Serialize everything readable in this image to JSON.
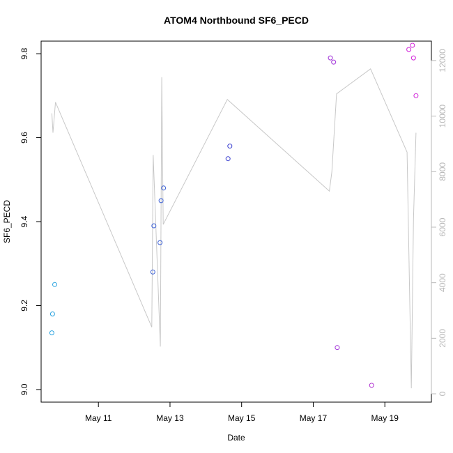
{
  "chart_data": {
    "type": "scatter",
    "title": "ATOM4 Northbound SF6_PECD",
    "xlabel": "Date",
    "ylabel": "SF6_PECD",
    "x_ticks": [
      "May 11",
      "May 13",
      "May 15",
      "May 17",
      "May 19"
    ],
    "x_tick_days": [
      11,
      13,
      15,
      17,
      19
    ],
    "xlim": [
      9.4,
      20.3
    ],
    "ylim": [
      8.97,
      9.83
    ],
    "y_ticks": [
      9.0,
      9.2,
      9.4,
      9.6,
      9.8
    ],
    "y2lim": [
      -300,
      12700
    ],
    "y2_ticks": [
      0,
      2000,
      4000,
      6000,
      8000,
      10000,
      12000
    ],
    "grid": false,
    "points": [
      {
        "x": 9.7,
        "y": 9.135,
        "color": "#29a3e0"
      },
      {
        "x": 9.72,
        "y": 9.18,
        "color": "#29a3e0"
      },
      {
        "x": 9.78,
        "y": 9.25,
        "color": "#29a3e0"
      },
      {
        "x": 12.52,
        "y": 9.28,
        "color": "#3a5fd6"
      },
      {
        "x": 12.55,
        "y": 9.39,
        "color": "#3a5fd6"
      },
      {
        "x": 12.72,
        "y": 9.35,
        "color": "#3a5fd6"
      },
      {
        "x": 12.75,
        "y": 9.45,
        "color": "#3a5fd6"
      },
      {
        "x": 12.82,
        "y": 9.48,
        "color": "#3a5fd6"
      },
      {
        "x": 14.62,
        "y": 9.55,
        "color": "#3a3fd0"
      },
      {
        "x": 14.67,
        "y": 9.58,
        "color": "#3a3fd0"
      },
      {
        "x": 17.48,
        "y": 9.79,
        "color": "#a030d8"
      },
      {
        "x": 17.57,
        "y": 9.78,
        "color": "#a030d8"
      },
      {
        "x": 17.67,
        "y": 9.1,
        "color": "#a030d8"
      },
      {
        "x": 18.63,
        "y": 9.01,
        "color": "#b030d0"
      },
      {
        "x": 19.67,
        "y": 9.81,
        "color": "#d020d8"
      },
      {
        "x": 19.77,
        "y": 9.82,
        "color": "#d020d8"
      },
      {
        "x": 19.8,
        "y": 9.79,
        "color": "#d020d8"
      },
      {
        "x": 19.87,
        "y": 9.7,
        "color": "#d020d8"
      }
    ],
    "line_series": {
      "axis": "right",
      "color": "#c8c8c8",
      "x": [
        9.7,
        9.73,
        9.8,
        12.49,
        12.53,
        12.73,
        12.77,
        12.81,
        14.6,
        17.45,
        17.52,
        17.65,
        18.6,
        19.62,
        19.74,
        19.8,
        19.87
      ],
      "y": [
        10100,
        9400,
        10500,
        2400,
        8600,
        1700,
        11400,
        6100,
        10600,
        7300,
        8000,
        10800,
        11700,
        8700,
        200,
        6300,
        9400
      ]
    }
  }
}
